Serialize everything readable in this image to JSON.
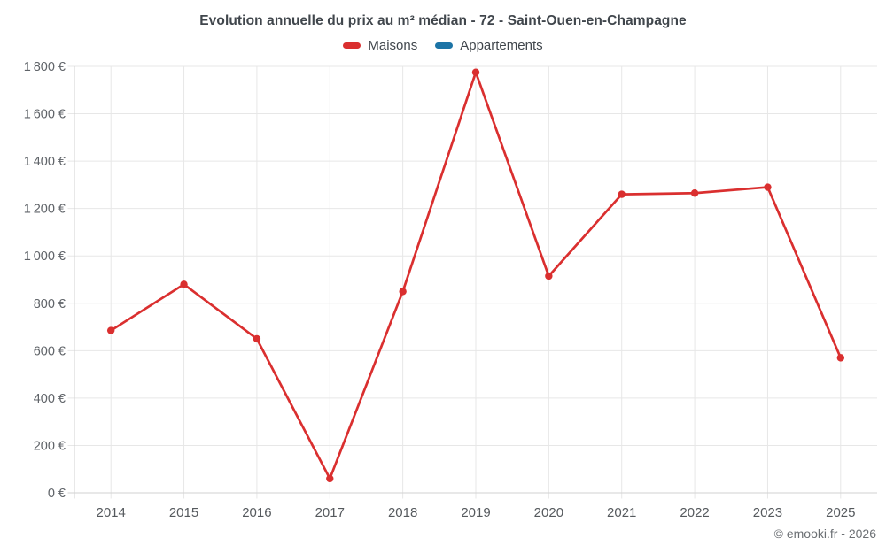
{
  "title": "Evolution annuelle du prix au m² médian - 72 - Saint-Ouen-en-Champagne",
  "legend": {
    "items": [
      {
        "label": "Maisons",
        "color": "#da2f2f"
      },
      {
        "label": "Appartements",
        "color": "#1c74a6"
      }
    ]
  },
  "copyright": "© emooki.fr - 2026",
  "chart_data": {
    "type": "line",
    "title": "Evolution annuelle du prix au m² médian - 72 - Saint-Ouen-en-Champagne",
    "categories": [
      "2014",
      "2015",
      "2016",
      "2017",
      "2018",
      "2019",
      "2020",
      "2021",
      "2022",
      "2023",
      "2025"
    ],
    "series": [
      {
        "name": "Maisons",
        "color": "#da2f2f",
        "values": [
          685,
          880,
          650,
          60,
          850,
          1775,
          915,
          1260,
          1265,
          1290,
          570
        ]
      },
      {
        "name": "Appartements",
        "color": "#1c74a6",
        "values": []
      }
    ],
    "xlabel": "",
    "ylabel": "",
    "ylim": [
      0,
      1800
    ],
    "ytick_step": 200,
    "ytick_suffix": " €",
    "grid": true,
    "legend_position": "top",
    "marker": "circle"
  }
}
